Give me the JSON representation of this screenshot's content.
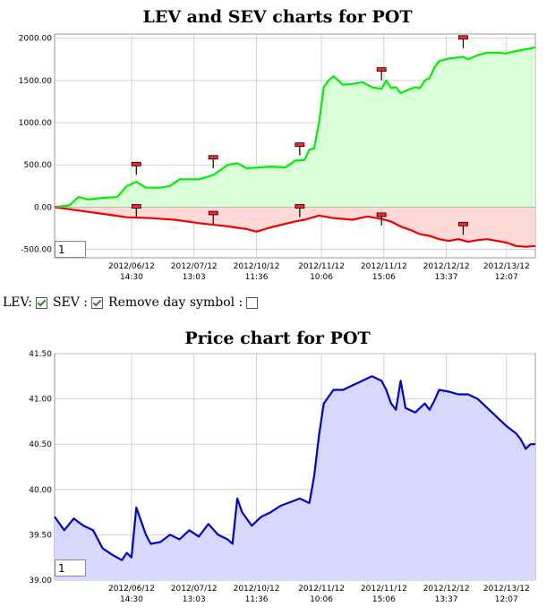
{
  "chart_data": [
    {
      "type": "area",
      "title": "LEV and SEV charts for POT",
      "x_tick_labels": [
        [
          "2012/06/12",
          "14:30"
        ],
        [
          "2012/07/12",
          "13:03"
        ],
        [
          "2012/10/12",
          "11:36"
        ],
        [
          "2012/11/12",
          "10:06"
        ],
        [
          "2012/11/12",
          "15:06"
        ],
        [
          "2012/12/12",
          "13:37"
        ],
        [
          "2012/13/12",
          "12:07"
        ]
      ],
      "y_tick_labels": [
        "2000.00",
        "1500.00",
        "1000.00",
        "500.00",
        "0.00",
        "-500.00"
      ],
      "ylim": [
        -600,
        2050
      ],
      "grid": true,
      "series": [
        {
          "name": "LEV",
          "color": "#00ee00",
          "fill": "#d8ffd8",
          "points": [
            [
              0,
              0
            ],
            [
              3,
              20
            ],
            [
              5,
              120
            ],
            [
              7,
              90
            ],
            [
              10,
              110
            ],
            [
              13,
              120
            ],
            [
              15,
              250
            ],
            [
              17,
              300
            ],
            [
              19,
              230
            ],
            [
              22,
              230
            ],
            [
              24,
              250
            ],
            [
              26,
              330
            ],
            [
              30,
              330
            ],
            [
              33,
              380
            ],
            [
              34,
              420
            ],
            [
              36,
              500
            ],
            [
              38,
              520
            ],
            [
              40,
              460
            ],
            [
              45,
              480
            ],
            [
              48,
              470
            ],
            [
              50,
              550
            ],
            [
              52,
              560
            ],
            [
              53,
              680
            ],
            [
              54,
              700
            ],
            [
              55,
              1000
            ],
            [
              56,
              1420
            ],
            [
              57,
              1500
            ],
            [
              58,
              1550
            ],
            [
              60,
              1450
            ],
            [
              62,
              1460
            ],
            [
              64,
              1480
            ],
            [
              66,
              1420
            ],
            [
              68,
              1400
            ],
            [
              69,
              1500
            ],
            [
              70,
              1410
            ],
            [
              71,
              1420
            ],
            [
              72,
              1350
            ],
            [
              74,
              1400
            ],
            [
              75,
              1420
            ],
            [
              76,
              1410
            ],
            [
              77,
              1500
            ],
            [
              78,
              1530
            ],
            [
              79,
              1650
            ],
            [
              80,
              1730
            ],
            [
              82,
              1760
            ],
            [
              85,
              1780
            ],
            [
              86,
              1750
            ],
            [
              88,
              1800
            ],
            [
              90,
              1830
            ],
            [
              92,
              1830
            ],
            [
              94,
              1820
            ],
            [
              96,
              1850
            ],
            [
              98,
              1870
            ],
            [
              100,
              1890
            ]
          ]
        },
        {
          "name": "SEV",
          "color": "#ee0000",
          "fill": "#ffd8d8",
          "points": [
            [
              0,
              0
            ],
            [
              5,
              -40
            ],
            [
              10,
              -80
            ],
            [
              15,
              -120
            ],
            [
              20,
              -130
            ],
            [
              25,
              -150
            ],
            [
              30,
              -190
            ],
            [
              35,
              -220
            ],
            [
              40,
              -260
            ],
            [
              42,
              -290
            ],
            [
              45,
              -240
            ],
            [
              50,
              -170
            ],
            [
              52,
              -150
            ],
            [
              55,
              -100
            ],
            [
              58,
              -130
            ],
            [
              62,
              -150
            ],
            [
              65,
              -110
            ],
            [
              68,
              -140
            ],
            [
              70,
              -170
            ],
            [
              72,
              -230
            ],
            [
              74,
              -270
            ],
            [
              76,
              -320
            ],
            [
              78,
              -340
            ],
            [
              80,
              -380
            ],
            [
              82,
              -400
            ],
            [
              84,
              -380
            ],
            [
              86,
              -410
            ],
            [
              88,
              -390
            ],
            [
              90,
              -380
            ],
            [
              92,
              -400
            ],
            [
              94,
              -420
            ],
            [
              96,
              -460
            ],
            [
              98,
              -470
            ],
            [
              100,
              -460
            ]
          ]
        }
      ],
      "markers": [
        {
          "x": 17,
          "y": 510
        },
        {
          "x": 33,
          "y": 590
        },
        {
          "x": 51,
          "y": 740
        },
        {
          "x": 68,
          "y": 1630
        },
        {
          "x": 85,
          "y": 2010
        },
        {
          "x": 17,
          "y": 10
        },
        {
          "x": 33,
          "y": -70
        },
        {
          "x": 51,
          "y": 10
        },
        {
          "x": 68,
          "y": -90
        },
        {
          "x": 85,
          "y": -200
        }
      ],
      "zoom_value": "1"
    },
    {
      "type": "area",
      "title": "Price chart for POT",
      "x_tick_labels": [
        [
          "2012/06/12",
          "14:30"
        ],
        [
          "2012/07/12",
          "13:03"
        ],
        [
          "2012/10/12",
          "11:36"
        ],
        [
          "2012/11/12",
          "10:06"
        ],
        [
          "2012/11/12",
          "15:06"
        ],
        [
          "2012/12/12",
          "13:37"
        ],
        [
          "2012/13/12",
          "12:07"
        ]
      ],
      "y_tick_labels": [
        "41.50",
        "41.00",
        "40.50",
        "40.00",
        "39.50",
        "39.00"
      ],
      "ylim": [
        39.0,
        41.5
      ],
      "grid": true,
      "series": [
        {
          "name": "Price",
          "color": "#0000cc",
          "fill": "#d8d8ff",
          "points": [
            [
              0,
              39.7
            ],
            [
              2,
              39.55
            ],
            [
              4,
              39.68
            ],
            [
              6,
              39.6
            ],
            [
              8,
              39.55
            ],
            [
              10,
              39.35
            ],
            [
              12,
              39.28
            ],
            [
              14,
              39.22
            ],
            [
              15,
              39.3
            ],
            [
              16,
              39.25
            ],
            [
              17,
              39.8
            ],
            [
              18,
              39.65
            ],
            [
              19,
              39.5
            ],
            [
              20,
              39.4
            ],
            [
              22,
              39.42
            ],
            [
              24,
              39.5
            ],
            [
              26,
              39.45
            ],
            [
              28,
              39.55
            ],
            [
              30,
              39.48
            ],
            [
              32,
              39.62
            ],
            [
              34,
              39.5
            ],
            [
              36,
              39.45
            ],
            [
              37,
              39.4
            ],
            [
              38,
              39.9
            ],
            [
              39,
              39.75
            ],
            [
              41,
              39.6
            ],
            [
              43,
              39.7
            ],
            [
              45,
              39.75
            ],
            [
              47,
              39.82
            ],
            [
              49,
              39.86
            ],
            [
              51,
              39.9
            ],
            [
              53,
              39.85
            ],
            [
              54,
              40.15
            ],
            [
              55,
              40.6
            ],
            [
              56,
              40.95
            ],
            [
              58,
              41.1
            ],
            [
              60,
              41.1
            ],
            [
              62,
              41.15
            ],
            [
              64,
              41.2
            ],
            [
              66,
              41.25
            ],
            [
              68,
              41.2
            ],
            [
              69,
              41.1
            ],
            [
              70,
              40.95
            ],
            [
              71,
              40.88
            ],
            [
              72,
              41.2
            ],
            [
              73,
              40.9
            ],
            [
              75,
              40.85
            ],
            [
              77,
              40.95
            ],
            [
              78,
              40.88
            ],
            [
              79,
              40.98
            ],
            [
              80,
              41.1
            ],
            [
              82,
              41.08
            ],
            [
              84,
              41.05
            ],
            [
              86,
              41.05
            ],
            [
              88,
              41.0
            ],
            [
              90,
              40.9
            ],
            [
              92,
              40.8
            ],
            [
              94,
              40.7
            ],
            [
              96,
              40.62
            ],
            [
              97,
              40.55
            ],
            [
              98,
              40.45
            ],
            [
              99,
              40.5
            ],
            [
              100,
              40.5
            ]
          ]
        }
      ],
      "zoom_value": "1"
    }
  ],
  "controls": {
    "lev_label": "LEV:",
    "sev_label": "SEV :",
    "remove_label": "Remove day symbol :",
    "lev_checked": true,
    "sev_checked": true,
    "remove_checked": false
  }
}
